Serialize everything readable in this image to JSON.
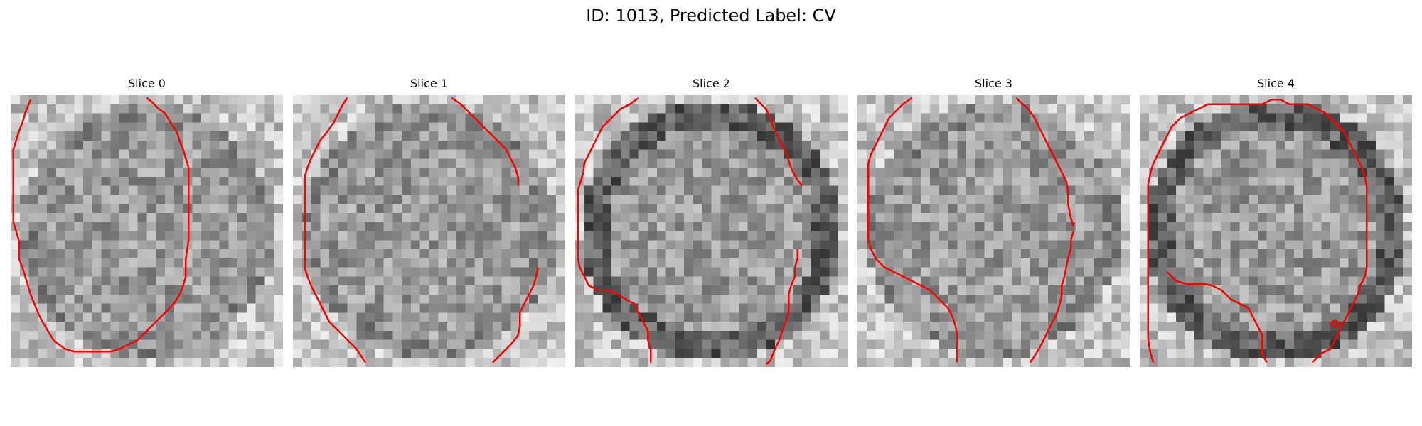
{
  "figure": {
    "title": "ID: 1013, Predicted Label: CV"
  },
  "slices": [
    {
      "label": "Slice 0",
      "seed": 11,
      "contour_color": "#ff0000",
      "dark_rim": false
    },
    {
      "label": "Slice 1",
      "seed": 23,
      "contour_color": "#ff0000",
      "dark_rim": false
    },
    {
      "label": "Slice 2",
      "seed": 37,
      "contour_color": "#ff0000",
      "dark_rim": true
    },
    {
      "label": "Slice 3",
      "seed": 51,
      "contour_color": "#ff0000",
      "dark_rim": false
    },
    {
      "label": "Slice 4",
      "seed": 67,
      "contour_color": "#ff0000",
      "dark_rim": true
    }
  ],
  "colors": {
    "contour": "#ff0000",
    "background": "#ffffff"
  }
}
